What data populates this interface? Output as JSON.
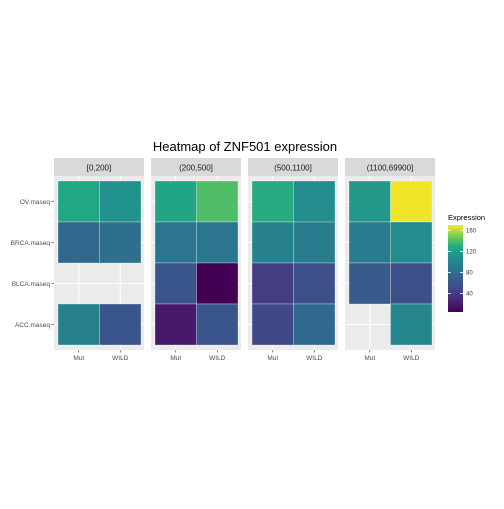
{
  "chart_data": {
    "type": "heatmap",
    "title": "Heatmap of ZNF501 expression",
    "xlabel": "",
    "ylabel": "",
    "x_categories": [
      "Mut",
      "WILD"
    ],
    "y_categories": [
      "ACC.maseq",
      "BLCA.maseq",
      "BRCA.maseq",
      "OV.maseq"
    ],
    "facets": [
      {
        "label": "[0,200]",
        "cells": [
          {
            "x": "Mut",
            "y": "OV.maseq",
            "value": 128
          },
          {
            "x": "WILD",
            "y": "OV.maseq",
            "value": 110
          },
          {
            "x": "Mut",
            "y": "BRCA.maseq",
            "value": 75
          },
          {
            "x": "WILD",
            "y": "BRCA.maseq",
            "value": 80
          },
          {
            "x": "Mut",
            "y": "ACC.maseq",
            "value": 95
          },
          {
            "x": "WILD",
            "y": "ACC.maseq",
            "value": 60
          }
        ]
      },
      {
        "label": "(200,500]",
        "cells": [
          {
            "x": "Mut",
            "y": "OV.maseq",
            "value": 125
          },
          {
            "x": "WILD",
            "y": "OV.maseq",
            "value": 140
          },
          {
            "x": "Mut",
            "y": "BRCA.maseq",
            "value": 85
          },
          {
            "x": "WILD",
            "y": "BRCA.maseq",
            "value": 85
          },
          {
            "x": "Mut",
            "y": "BLCA.maseq",
            "value": 60
          },
          {
            "x": "WILD",
            "y": "BLCA.maseq",
            "value": 5
          },
          {
            "x": "Mut",
            "y": "ACC.maseq",
            "value": 20
          },
          {
            "x": "WILD",
            "y": "ACC.maseq",
            "value": 60
          }
        ]
      },
      {
        "label": "(500,1100]",
        "cells": [
          {
            "x": "Mut",
            "y": "OV.maseq",
            "value": 130
          },
          {
            "x": "WILD",
            "y": "OV.maseq",
            "value": 105
          },
          {
            "x": "Mut",
            "y": "BRCA.maseq",
            "value": 95
          },
          {
            "x": "WILD",
            "y": "BRCA.maseq",
            "value": 90
          },
          {
            "x": "Mut",
            "y": "BLCA.maseq",
            "value": 42
          },
          {
            "x": "WILD",
            "y": "BLCA.maseq",
            "value": 55
          },
          {
            "x": "Mut",
            "y": "ACC.maseq",
            "value": 50
          },
          {
            "x": "WILD",
            "y": "ACC.maseq",
            "value": 75
          }
        ]
      },
      {
        "label": "(1100,69900]",
        "cells": [
          {
            "x": "Mut",
            "y": "OV.maseq",
            "value": 115
          },
          {
            "x": "WILD",
            "y": "OV.maseq",
            "value": 168
          },
          {
            "x": "Mut",
            "y": "BRCA.maseq",
            "value": 90
          },
          {
            "x": "WILD",
            "y": "BRCA.maseq",
            "value": 105
          },
          {
            "x": "Mut",
            "y": "BLCA.maseq",
            "value": 65
          },
          {
            "x": "WILD",
            "y": "BLCA.maseq",
            "value": 55
          },
          {
            "x": "WILD",
            "y": "ACC.maseq",
            "value": 100
          }
        ]
      }
    ],
    "legend": {
      "title": "Expression",
      "placement": "right",
      "ticks": [
        40,
        80,
        120,
        160
      ],
      "range": [
        5,
        170
      ],
      "palette": "viridis"
    },
    "grid": true
  }
}
